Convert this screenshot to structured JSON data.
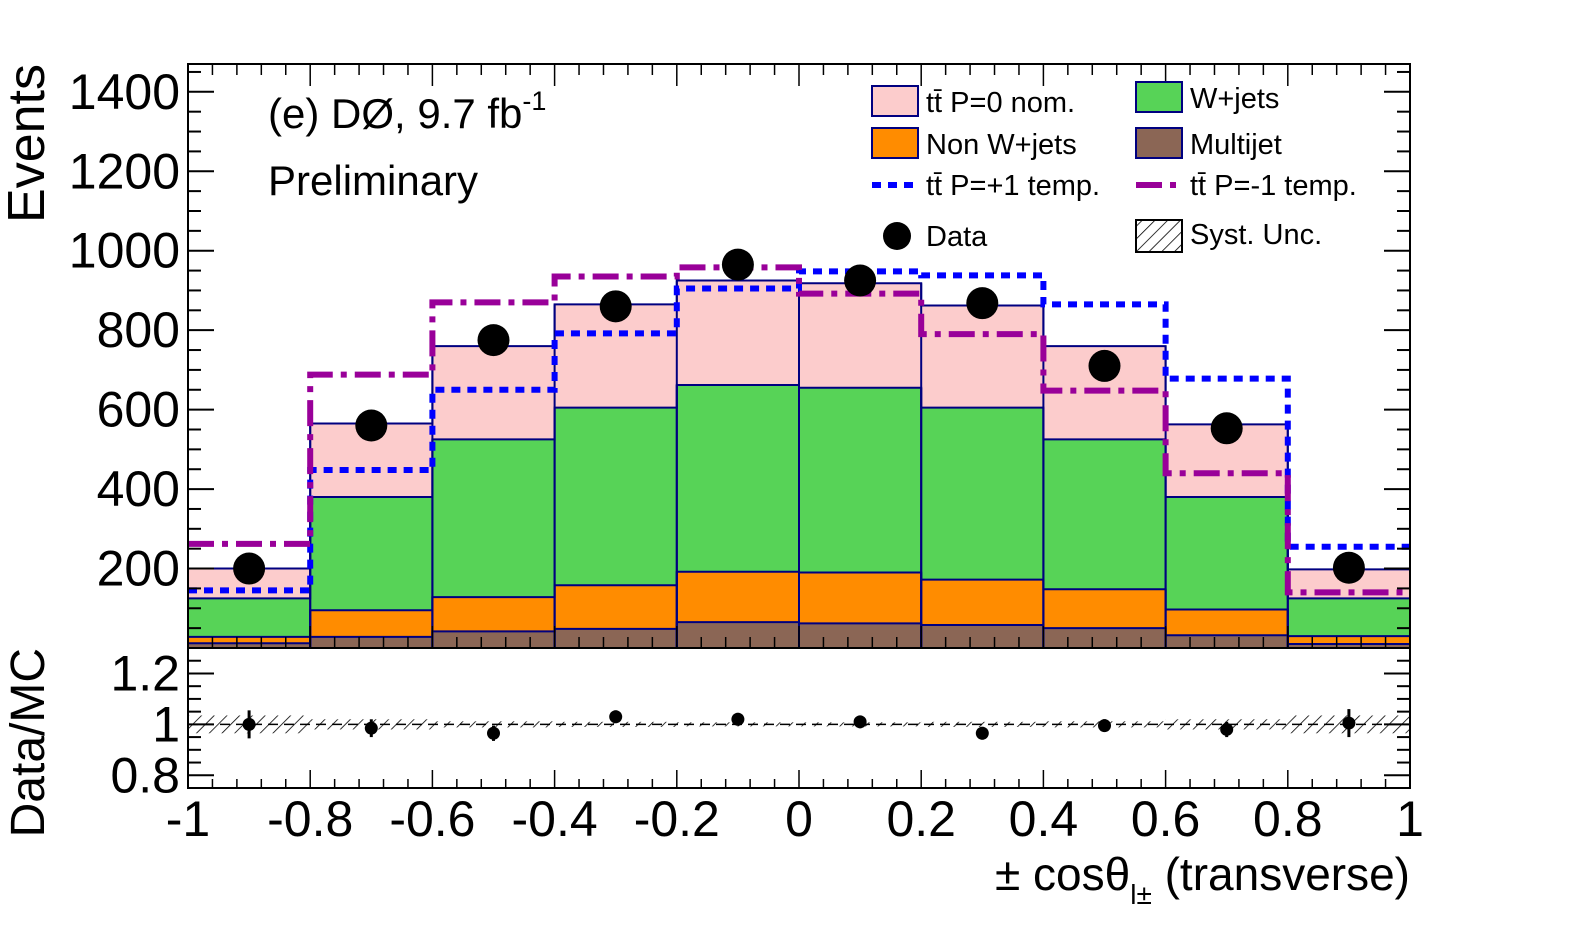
{
  "chart_data": {
    "type": "histogram",
    "annotation": {
      "line1_main": "(e) DØ, 9.7 fb",
      "line1_sup": "-1",
      "line2": "Preliminary"
    },
    "xlabel": {
      "main": "± cosθ",
      "sub": "l±",
      "suffix": " (transverse)"
    },
    "bin_edges": [
      -1,
      -0.8,
      -0.6,
      -0.4,
      -0.2,
      0,
      0.2,
      0.4,
      0.6,
      0.8,
      1
    ],
    "x_ticks": [
      -1,
      -0.8,
      -0.6,
      -0.4,
      -0.2,
      0,
      0.2,
      0.4,
      0.6,
      0.8,
      1
    ],
    "x_tick_labels": [
      "-1",
      "-0.8",
      "-0.6",
      "-0.4",
      "-0.2",
      "0",
      "0.2",
      "0.4",
      "0.6",
      "0.8",
      "1"
    ],
    "top_panel": {
      "ylabel": "Events",
      "ylim": [
        0,
        1470
      ],
      "y_ticks": [
        200,
        400,
        600,
        800,
        1000,
        1200,
        1400
      ],
      "y_tick_labels": [
        "200",
        "400",
        "600",
        "800",
        "1000",
        "1200",
        "1400"
      ],
      "stack": [
        {
          "name": "Multijet",
          "color": "#8b6655",
          "values": [
            12,
            28,
            42,
            48,
            65,
            62,
            58,
            50,
            32,
            10
          ]
        },
        {
          "name": "Non W+jets",
          "color": "#ff8c00",
          "values": [
            28,
            95,
            128,
            158,
            192,
            190,
            172,
            148,
            97,
            30
          ]
        },
        {
          "name": "W+jets",
          "color": "#57d357",
          "values": [
            125,
            380,
            525,
            605,
            662,
            655,
            605,
            525,
            380,
            125
          ]
        },
        {
          "name": "tt̄ P=0 nom.",
          "color": "#fccccc",
          "values": [
            200,
            565,
            760,
            865,
            925,
            918,
            862,
            760,
            563,
            198
          ]
        }
      ],
      "template_plus": {
        "name": "tt̄ P=+1 temp.",
        "color": "#0000ff",
        "values": [
          145,
          448,
          650,
          792,
          905,
          948,
          938,
          865,
          678,
          255
        ]
      },
      "template_minus": {
        "name": "tt̄ P=-1 temp.",
        "color": "#990099",
        "values": [
          262,
          688,
          870,
          935,
          958,
          892,
          790,
          648,
          440,
          140
        ]
      },
      "data": {
        "name": "Data",
        "x": [
          -0.9,
          -0.7,
          -0.5,
          -0.3,
          -0.1,
          0.1,
          0.3,
          0.5,
          0.7,
          0.9
        ],
        "y": [
          200,
          560,
          775,
          860,
          965,
          925,
          868,
          710,
          553,
          202
        ]
      },
      "syst_label": "Syst. Unc."
    },
    "ratio_panel": {
      "ylabel": "Data/MC",
      "ylim": [
        0.75,
        1.3
      ],
      "y_ticks": [
        0.8,
        1.0,
        1.2
      ],
      "y_tick_labels": [
        "0.8",
        "1",
        "1.2"
      ],
      "points": {
        "x": [
          -0.9,
          -0.7,
          -0.5,
          -0.3,
          -0.1,
          0.1,
          0.3,
          0.5,
          0.7,
          0.9
        ],
        "y": [
          1.0,
          0.985,
          0.965,
          1.03,
          1.02,
          1.01,
          0.965,
          0.995,
          0.98,
          1.005
        ],
        "err": [
          0.055,
          0.035,
          0.03,
          0.025,
          0.025,
          0.025,
          0.025,
          0.025,
          0.03,
          0.055
        ]
      },
      "syst_band": [
        0.035,
        0.02,
        0.012,
        0.01,
        0.008,
        0.008,
        0.01,
        0.012,
        0.02,
        0.035
      ]
    },
    "legend": {
      "placement": "top-right",
      "entries": [
        {
          "key": "nominal",
          "label": "tt̄ P=0 nom."
        },
        {
          "key": "wjets",
          "label": "W+jets"
        },
        {
          "key": "nonw",
          "label": "Non W+jets"
        },
        {
          "key": "multijet",
          "label": "Multijet"
        },
        {
          "key": "plus",
          "label": "tt̄ P=+1 temp."
        },
        {
          "key": "minus",
          "label": "tt̄ P=-1 temp."
        },
        {
          "key": "data",
          "label": "Data"
        },
        {
          "key": "syst",
          "label": "Syst. Unc."
        }
      ]
    },
    "colors": {
      "outline": "#000080",
      "data": "#000000"
    }
  }
}
